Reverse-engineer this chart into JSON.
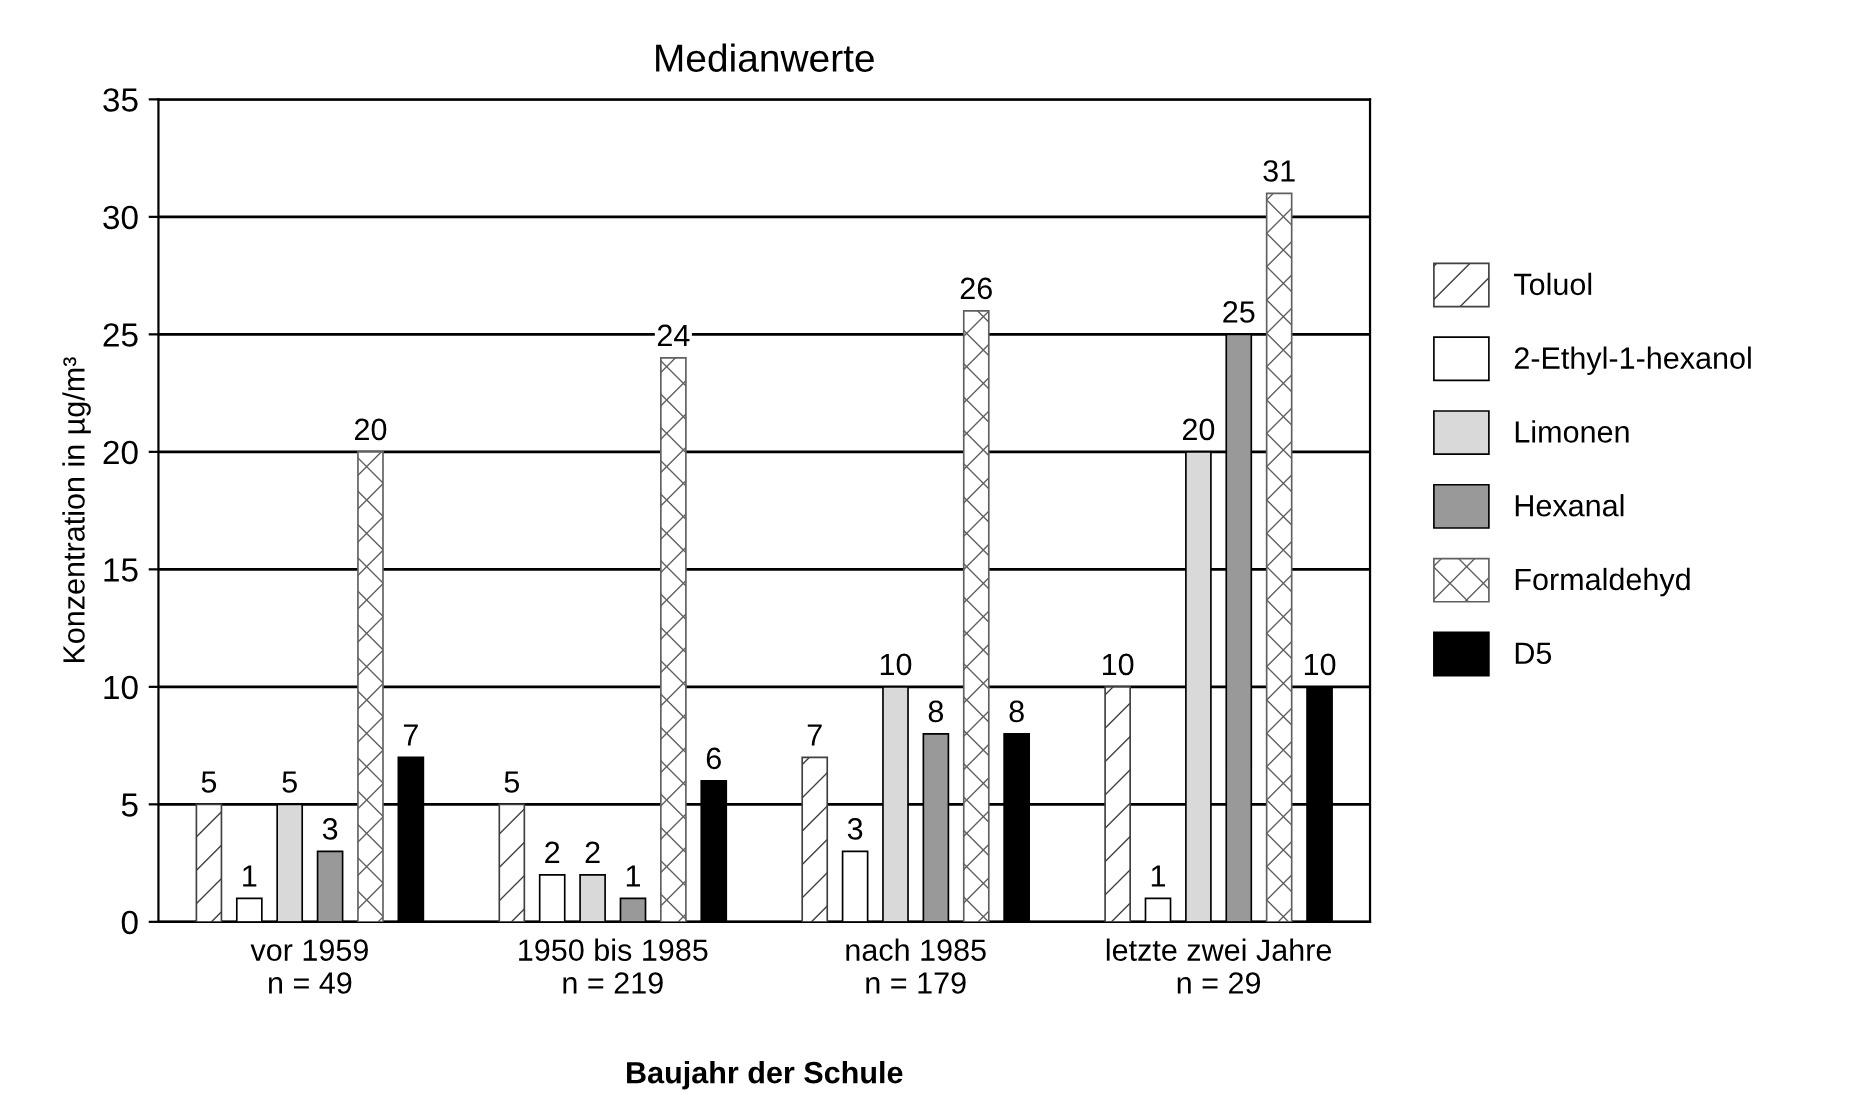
{
  "chart_data": {
    "type": "bar",
    "title": "Medianwerte",
    "xlabel": "Baujahr der Schule",
    "ylabel": "Konzentration in µg/m³",
    "categories": [
      "vor 1959\nn = 49",
      "1950 bis 1985\nn = 219",
      "nach 1985\nn = 179",
      "letzte zwei Jahre\nn = 29"
    ],
    "series": [
      {
        "name": "Toluol",
        "color": "#404040",
        "values": [
          5,
          5,
          7,
          10
        ]
      },
      {
        "name": "2-Ethyl-1-hexanol",
        "color": "#ffffff",
        "values": [
          1,
          2,
          3,
          1
        ]
      },
      {
        "name": "Limonen",
        "color": "#d9d9d9",
        "values": [
          5,
          2,
          10,
          20
        ]
      },
      {
        "name": "Hexanal",
        "color": "#999999",
        "values": [
          3,
          1,
          8,
          25
        ]
      },
      {
        "name": "Formaldehyd",
        "color": "#606060",
        "values": [
          20,
          24,
          26,
          31
        ]
      },
      {
        "name": "D5",
        "color": "#000000",
        "values": [
          7,
          6,
          8,
          10
        ]
      }
    ],
    "ylim": [
      0,
      35
    ],
    "yticks": [
      0,
      5,
      10,
      15,
      20,
      25,
      30,
      35
    ],
    "grid": "y",
    "legend": "right",
    "data_labels": true
  }
}
